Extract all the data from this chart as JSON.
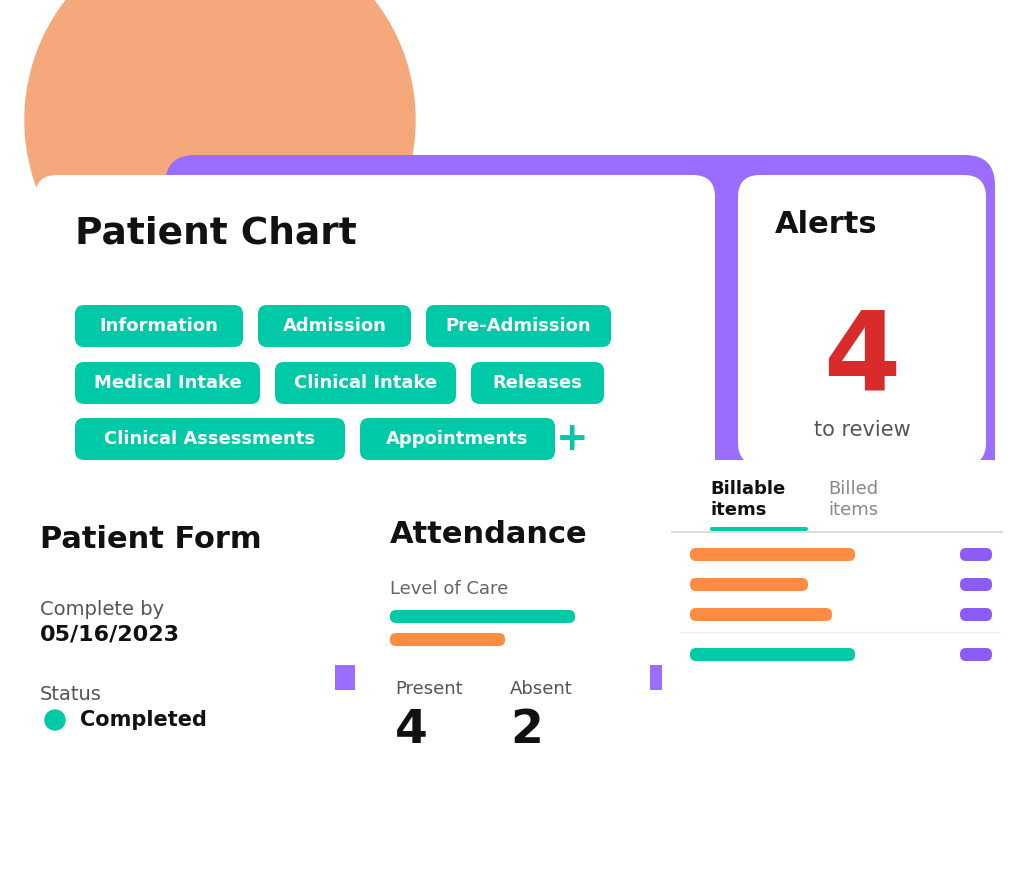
{
  "bg_color": "#ffffff",
  "orange_circle_color": "#F5A87B",
  "purple_card_color": "#9B6DFF",
  "white_card_color": "#ffffff",
  "teal_tag_color": "#00C9A7",
  "teal_tag_text": "#ffffff",
  "patient_chart_title": "Patient Chart",
  "tags_row1": [
    "Information",
    "Admission",
    "Pre-Admission"
  ],
  "tags_row2": [
    "Medical Intake",
    "Clinical Intake",
    "Releases"
  ],
  "tags_row3": [
    "Clinical Assessments",
    "Appointments"
  ],
  "alerts_title": "Alerts",
  "alerts_number": "4",
  "alerts_number_color": "#D92B2B",
  "alerts_subtitle": "to review",
  "patient_form_title": "Patient Form",
  "complete_by_label": "Complete by",
  "complete_by_date": "05/16/2023",
  "status_label": "Status",
  "status_dot_color": "#00C9A7",
  "status_text": "Completed",
  "attendance_title": "Attendance",
  "level_of_care_label": "Level of Care",
  "teal_bar_color": "#00C9A7",
  "orange_bar_color": "#FF8C42",
  "present_label": "Present",
  "present_value": "4",
  "absent_label": "Absent",
  "absent_value": "2",
  "billable_tab": "Billable\nitems",
  "billed_tab": "Billed\nitems",
  "tab_active_color": "#00C9A7",
  "purple_small_color": "#8B5CF6",
  "shadow_color": "#e0e0e0"
}
